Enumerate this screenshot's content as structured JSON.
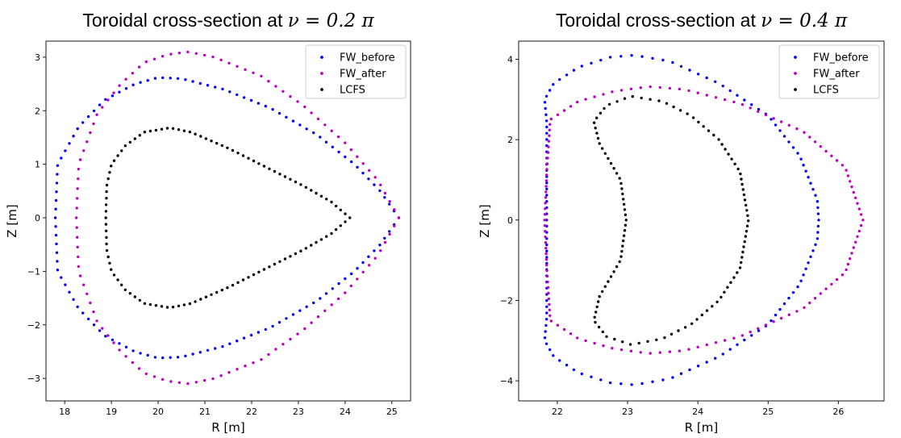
{
  "colors": {
    "FW_before": "#0000ff",
    "FW_after": "#bf00bf",
    "LCFS": "#000000"
  },
  "chart_data": [
    {
      "type": "scatter",
      "title": "Toroidal cross-section at",
      "title_math": "ν = 0.2 π",
      "xlabel": "R [m]",
      "ylabel": "Z [m]",
      "xlim": [
        17.6,
        25.4
      ],
      "ylim": [
        -3.42,
        3.3
      ],
      "xticks": [
        18,
        19,
        20,
        21,
        22,
        23,
        24,
        25
      ],
      "yticks": [
        -3,
        -2,
        -1,
        0,
        1,
        2,
        3
      ],
      "legend_position": "top-right",
      "series": [
        {
          "name": "FW_before",
          "color": "#0000ff",
          "points": 120,
          "outline": [
            [
              17.8,
              0
            ],
            [
              17.85,
              1
            ],
            [
              18.3,
              1.7
            ],
            [
              18.85,
              2.2
            ],
            [
              19.5,
              2.5
            ],
            [
              20.0,
              2.62
            ],
            [
              20.5,
              2.6
            ],
            [
              21.4,
              2.4
            ],
            [
              22.4,
              2.05
            ],
            [
              23.4,
              1.55
            ],
            [
              24.2,
              1.0
            ],
            [
              24.75,
              0.5
            ],
            [
              25.15,
              0
            ],
            [
              24.75,
              -0.5
            ],
            [
              24.2,
              -1.0
            ],
            [
              23.4,
              -1.55
            ],
            [
              22.4,
              -2.05
            ],
            [
              21.4,
              -2.4
            ],
            [
              20.5,
              -2.6
            ],
            [
              20.0,
              -2.62
            ],
            [
              19.5,
              -2.5
            ],
            [
              18.85,
              -2.2
            ],
            [
              18.3,
              -1.7
            ],
            [
              17.85,
              -1.0
            ]
          ]
        },
        {
          "name": "FW_after",
          "color": "#bf00bf",
          "points": 110,
          "outline": [
            [
              18.25,
              0
            ],
            [
              18.3,
              1.0
            ],
            [
              18.7,
              1.95
            ],
            [
              19.2,
              2.5
            ],
            [
              19.7,
              2.9
            ],
            [
              20.2,
              3.05
            ],
            [
              20.65,
              3.1
            ],
            [
              21.2,
              3.0
            ],
            [
              22.2,
              2.65
            ],
            [
              23.1,
              2.1
            ],
            [
              24.0,
              1.4
            ],
            [
              24.7,
              0.7
            ],
            [
              25.15,
              0
            ],
            [
              24.7,
              -0.7
            ],
            [
              24.0,
              -1.4
            ],
            [
              23.1,
              -2.1
            ],
            [
              22.2,
              -2.65
            ],
            [
              21.2,
              -3.0
            ],
            [
              20.65,
              -3.1
            ],
            [
              20.2,
              -3.05
            ],
            [
              19.7,
              -2.9
            ],
            [
              19.2,
              -2.5
            ],
            [
              18.7,
              -1.95
            ],
            [
              18.3,
              -1.0
            ]
          ]
        },
        {
          "name": "LCFS",
          "color": "#000000",
          "points": 110,
          "outline": [
            [
              18.88,
              0
            ],
            [
              18.9,
              0.6
            ],
            [
              19.0,
              1.0
            ],
            [
              19.3,
              1.35
            ],
            [
              19.7,
              1.6
            ],
            [
              20.25,
              1.68
            ],
            [
              20.7,
              1.6
            ],
            [
              21.5,
              1.3
            ],
            [
              22.3,
              0.95
            ],
            [
              23.1,
              0.6
            ],
            [
              23.7,
              0.3
            ],
            [
              24.1,
              0
            ],
            [
              23.7,
              -0.3
            ],
            [
              23.1,
              -0.6
            ],
            [
              22.3,
              -0.95
            ],
            [
              21.5,
              -1.3
            ],
            [
              20.7,
              -1.6
            ],
            [
              20.25,
              -1.68
            ],
            [
              19.7,
              -1.6
            ],
            [
              19.3,
              -1.35
            ],
            [
              19.0,
              -1.0
            ],
            [
              18.9,
              -0.6
            ]
          ]
        }
      ]
    },
    {
      "type": "scatter",
      "title": "Toroidal cross-section at",
      "title_math": "ν = 0.4 π",
      "xlabel": "R [m]",
      "ylabel": "Z [m]",
      "xlim": [
        21.45,
        26.65
      ],
      "ylim": [
        -4.5,
        4.45
      ],
      "xticks": [
        22,
        23,
        24,
        25,
        26
      ],
      "yticks": [
        -4,
        -2,
        0,
        2,
        4
      ],
      "legend_position": "top-right",
      "series": [
        {
          "name": "FW_before",
          "color": "#0000ff",
          "points": 130,
          "outline": [
            [
              21.85,
              0
            ],
            [
              21.85,
              2.4
            ],
            [
              21.82,
              3.0
            ],
            [
              21.95,
              3.4
            ],
            [
              22.3,
              3.8
            ],
            [
              22.75,
              4.05
            ],
            [
              23.1,
              4.1
            ],
            [
              23.6,
              3.95
            ],
            [
              24.3,
              3.4
            ],
            [
              25.0,
              2.6
            ],
            [
              25.45,
              1.6
            ],
            [
              25.7,
              0.5
            ],
            [
              25.72,
              0
            ],
            [
              25.7,
              -0.5
            ],
            [
              25.45,
              -1.6
            ],
            [
              25.0,
              -2.6
            ],
            [
              24.3,
              -3.4
            ],
            [
              23.6,
              -3.95
            ],
            [
              23.1,
              -4.1
            ],
            [
              22.75,
              -4.05
            ],
            [
              22.3,
              -3.8
            ],
            [
              21.95,
              -3.4
            ],
            [
              21.82,
              -3.0
            ],
            [
              21.85,
              -2.4
            ]
          ]
        },
        {
          "name": "FW_after",
          "color": "#bf00bf",
          "points": 130,
          "outline": [
            [
              21.82,
              0
            ],
            [
              21.85,
              1.2
            ],
            [
              21.9,
              2.5
            ],
            [
              22.3,
              2.95
            ],
            [
              22.8,
              3.2
            ],
            [
              23.3,
              3.32
            ],
            [
              23.8,
              3.25
            ],
            [
              24.6,
              2.9
            ],
            [
              25.5,
              2.2
            ],
            [
              26.1,
              1.3
            ],
            [
              26.35,
              0
            ],
            [
              26.1,
              -1.3
            ],
            [
              25.5,
              -2.2
            ],
            [
              24.6,
              -2.9
            ],
            [
              23.8,
              -3.25
            ],
            [
              23.3,
              -3.32
            ],
            [
              22.8,
              -3.2
            ],
            [
              22.3,
              -2.95
            ],
            [
              21.9,
              -2.5
            ],
            [
              21.85,
              -1.2
            ]
          ]
        },
        {
          "name": "LCFS",
          "color": "#000000",
          "points": 110,
          "outline": [
            [
              22.98,
              0
            ],
            [
              22.9,
              1.0
            ],
            [
              22.6,
              1.9
            ],
            [
              22.52,
              2.45
            ],
            [
              22.7,
              2.85
            ],
            [
              23.05,
              3.08
            ],
            [
              23.5,
              2.95
            ],
            [
              23.9,
              2.6
            ],
            [
              24.3,
              2.0
            ],
            [
              24.6,
              1.2
            ],
            [
              24.72,
              0
            ],
            [
              24.6,
              -1.2
            ],
            [
              24.3,
              -2.0
            ],
            [
              23.9,
              -2.6
            ],
            [
              23.5,
              -2.95
            ],
            [
              23.05,
              -3.1
            ],
            [
              22.7,
              -2.9
            ],
            [
              22.52,
              -2.5
            ],
            [
              22.6,
              -1.9
            ],
            [
              22.9,
              -1.0
            ]
          ]
        }
      ]
    }
  ]
}
